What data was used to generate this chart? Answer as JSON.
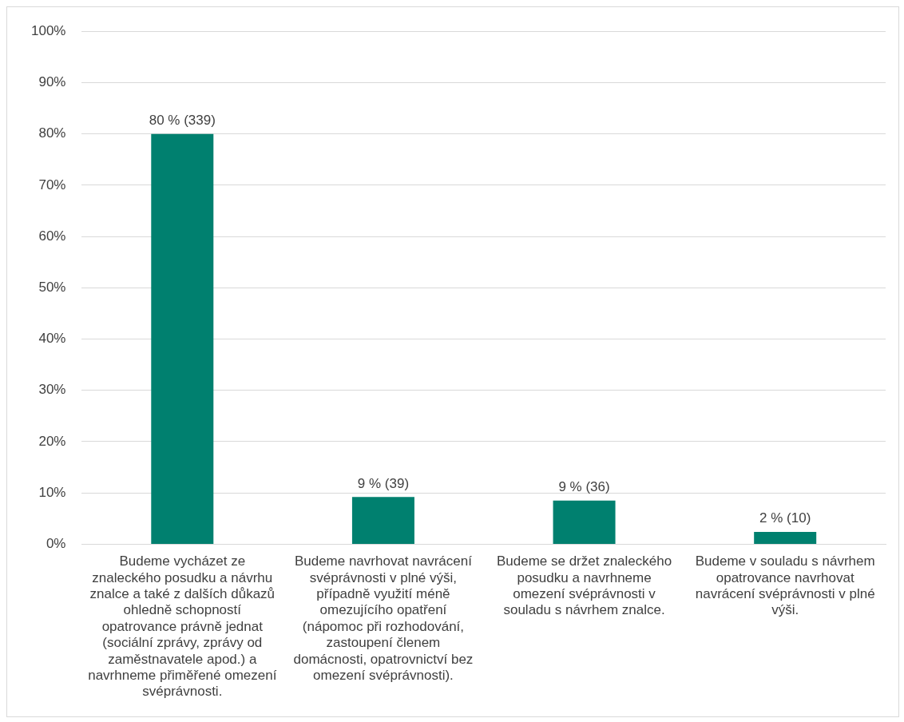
{
  "chart_data": {
    "type": "bar",
    "categories": [
      "Budeme vycházet ze znaleckého posudku a návrhu znalce a také z dalších důkazů ohledně schopností opatrovance právně jednat (sociální zprávy, zprávy od zaměstnavatele apod.) a navrhneme přiměřené omezení svéprávnosti.",
      "Budeme navrhovat navrácení svéprávnosti v plné výši, případně využití méně omezujícího opatření (nápomoc při rozhodování, zastoupení členem domácnosti, opatrovnictví bez omezení svéprávnosti).",
      "Budeme se držet znaleckého posudku a navrhneme omezení svéprávnosti v souladu s návrhem znalce.",
      "Budeme v souladu s návrhem opatrovance navrhovat navrácení svéprávnosti v plné výši."
    ],
    "values": [
      80,
      9.2,
      8.5,
      2.4
    ],
    "value_labels": [
      "80 % (339)",
      "9 % (39)",
      "9 % (36)",
      "2 % (10)"
    ],
    "color": "#00806f",
    "ylim": [
      0,
      100
    ],
    "yticks": [
      {
        "value": 0,
        "label": "0%"
      },
      {
        "value": 10,
        "label": "10%"
      },
      {
        "value": 20,
        "label": "20%"
      },
      {
        "value": 30,
        "label": "30%"
      },
      {
        "value": 40,
        "label": "40%"
      },
      {
        "value": 50,
        "label": "50%"
      },
      {
        "value": 60,
        "label": "60%"
      },
      {
        "value": 70,
        "label": "70%"
      },
      {
        "value": 80,
        "label": "80%"
      },
      {
        "value": 90,
        "label": "90%"
      },
      {
        "value": 100,
        "label": "100%"
      }
    ],
    "grid": "y",
    "legend": false
  }
}
